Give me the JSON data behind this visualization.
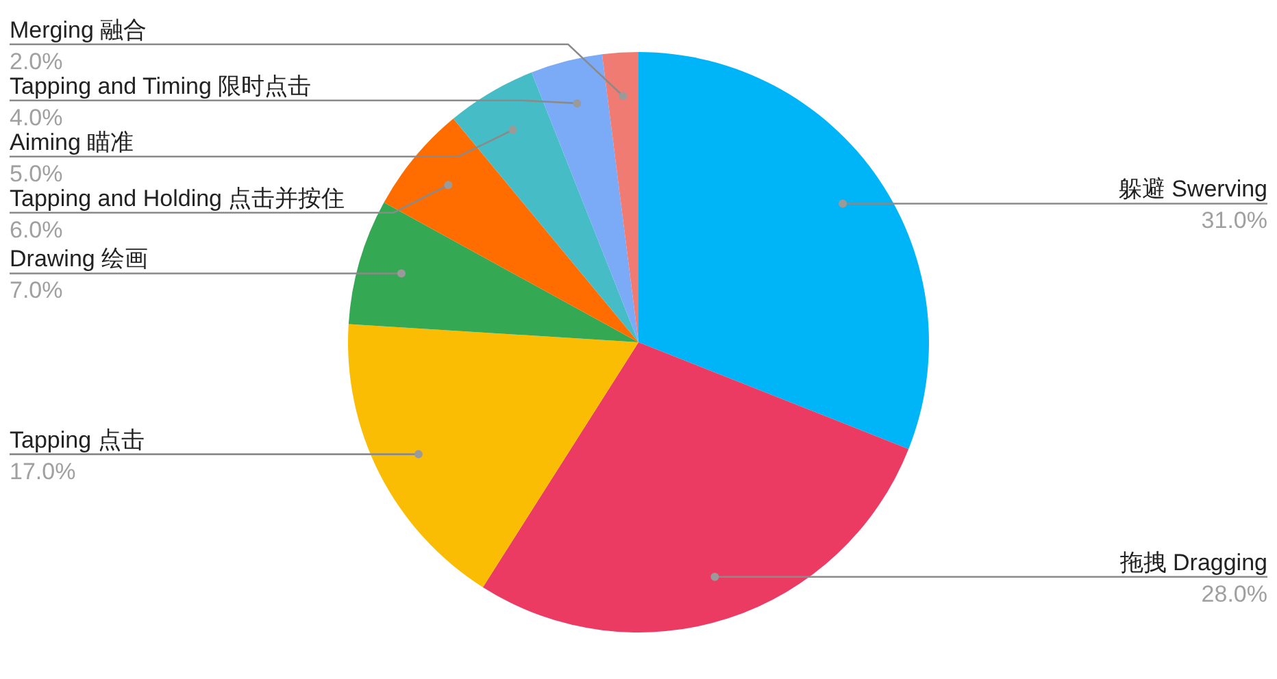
{
  "chart_data": {
    "type": "pie",
    "categories": [
      "躲避 Swerving",
      "拖拽 Dragging",
      "Tapping 点击",
      "Drawing 绘画",
      "Tapping and Holding 点击并按住",
      "Aiming 瞄准",
      "Tapping and Timing 限时点击",
      "Merging 融合"
    ],
    "values": [
      31,
      28,
      17,
      7,
      6,
      5,
      4,
      2
    ],
    "colors": [
      "#00b4f8",
      "#eb3b63",
      "#fbbc04",
      "#34a853",
      "#ff6d01",
      "#46bdc6",
      "#7baaf7",
      "#f07b72"
    ],
    "value_labels": [
      "31.0%",
      "28.0%",
      "17.0%",
      "7.0%",
      "6.0%",
      "5.0%",
      "4.0%",
      "2.0%"
    ]
  }
}
